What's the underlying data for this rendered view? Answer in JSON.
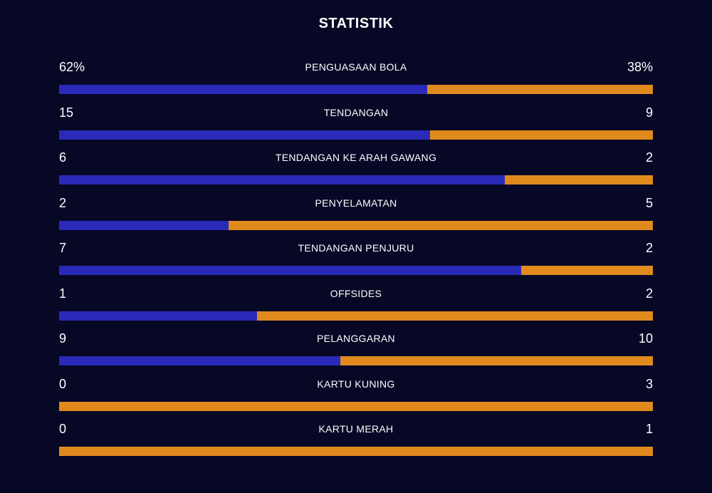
{
  "header": {
    "title": "STATISTIK"
  },
  "colors": {
    "background": "#070726",
    "home": "#2a2ab8",
    "away": "#e08a1e",
    "text": "#ffffff"
  },
  "stats": [
    {
      "label": "PENGUASAAN BOLA",
      "home": "62%",
      "away": "38%",
      "home_share": 0.62
    },
    {
      "label": "TENDANGAN",
      "home": "15",
      "away": "9",
      "home_share": 0.625
    },
    {
      "label": "TENDANGAN KE ARAH GAWANG",
      "home": "6",
      "away": "2",
      "home_share": 0.75
    },
    {
      "label": "PENYELAMATAN",
      "home": "2",
      "away": "5",
      "home_share": 0.2857
    },
    {
      "label": "TENDANGAN PENJURU",
      "home": "7",
      "away": "2",
      "home_share": 0.7778
    },
    {
      "label": "OFFSIDES",
      "home": "1",
      "away": "2",
      "home_share": 0.3333
    },
    {
      "label": "PELANGGARAN",
      "home": "9",
      "away": "10",
      "home_share": 0.4737
    },
    {
      "label": "KARTU KUNING",
      "home": "0",
      "away": "3",
      "home_share": 0
    },
    {
      "label": "KARTU MERAH",
      "home": "0",
      "away": "1",
      "home_share": 0
    }
  ]
}
